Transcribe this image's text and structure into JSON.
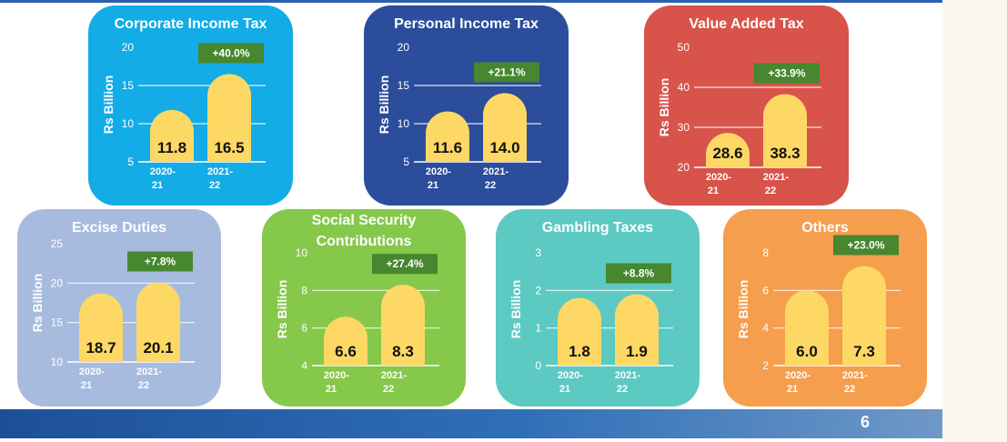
{
  "page_number": "6",
  "chart_data": [
    {
      "type": "bar",
      "title": "Corporate Income Tax",
      "ylabel": "Rs Billion",
      "ylim": [
        5,
        20
      ],
      "yticks": [
        "5",
        "10",
        "15",
        "20"
      ],
      "categories": [
        "2020-21",
        "2021-22"
      ],
      "category_labels": [
        [
          "2020-",
          "21"
        ],
        [
          "2021-",
          "22"
        ]
      ],
      "values": [
        11.8,
        16.5
      ],
      "value_labels": [
        "11.8",
        "16.5"
      ],
      "change_label": "+40.0%",
      "colors": {
        "panel": "#13ace6",
        "bar": "#fdd865",
        "badge": "#46872f"
      },
      "grid": true
    },
    {
      "type": "bar",
      "title": "Personal Income Tax",
      "ylabel": "Rs Billion",
      "ylim": [
        5,
        20
      ],
      "yticks": [
        "5",
        "10",
        "15",
        "20"
      ],
      "categories": [
        "2020-21",
        "2021-22"
      ],
      "category_labels": [
        [
          "2020-",
          "21"
        ],
        [
          "2021-",
          "22"
        ]
      ],
      "values": [
        11.6,
        14.0
      ],
      "value_labels": [
        "11.6",
        "14.0"
      ],
      "change_label": "+21.1%",
      "colors": {
        "panel": "#2b4d9b",
        "bar": "#fdd865",
        "badge": "#46872f"
      },
      "grid": true
    },
    {
      "type": "bar",
      "title": "Value Added Tax",
      "ylabel": "Rs Billion",
      "ylim": [
        20,
        50
      ],
      "yticks": [
        "20",
        "30",
        "40",
        "50"
      ],
      "categories": [
        "2020-21",
        "2021-22"
      ],
      "category_labels": [
        [
          "2020-",
          "21"
        ],
        [
          "2021-",
          "22"
        ]
      ],
      "values": [
        28.6,
        38.3
      ],
      "value_labels": [
        "28.6",
        "38.3"
      ],
      "change_label": "+33.9%",
      "colors": {
        "panel": "#d8534a",
        "bar": "#fdd865",
        "badge": "#46872f"
      },
      "grid": true
    },
    {
      "type": "bar",
      "title": "Excise Duties",
      "ylabel": "Rs Billion",
      "ylim": [
        10,
        25
      ],
      "yticks": [
        "10",
        "15",
        "20",
        "25"
      ],
      "categories": [
        "2020-21",
        "2021-22"
      ],
      "category_labels": [
        [
          "2020-",
          "21"
        ],
        [
          "2021-",
          "22"
        ]
      ],
      "values": [
        18.7,
        20.1
      ],
      "value_labels": [
        "18.7",
        "20.1"
      ],
      "change_label": "+7.8%",
      "colors": {
        "panel": "#a7bbdf",
        "bar": "#fdd865",
        "badge": "#46872f"
      },
      "grid": true
    },
    {
      "type": "bar",
      "title": "Social Security Contributions",
      "title_lines": [
        "Social Security",
        "Contributions"
      ],
      "ylabel": "Rs Billion",
      "ylim": [
        4,
        10
      ],
      "yticks": [
        "4",
        "6",
        "8",
        "10"
      ],
      "categories": [
        "2020-21",
        "2021-22"
      ],
      "category_labels": [
        [
          "2020-",
          "21"
        ],
        [
          "2021-",
          "22"
        ]
      ],
      "values": [
        6.6,
        8.3
      ],
      "value_labels": [
        "6.6",
        "8.3"
      ],
      "change_label": "+27.4%",
      "colors": {
        "panel": "#86c84a",
        "bar": "#fdd865",
        "badge": "#46872f"
      },
      "grid": true
    },
    {
      "type": "bar",
      "title": "Gambling Taxes",
      "ylabel": "Rs Billion",
      "ylim": [
        0,
        3
      ],
      "yticks": [
        "0",
        "1",
        "2",
        "3"
      ],
      "categories": [
        "2020-21",
        "2021-22"
      ],
      "category_labels": [
        [
          "2020-",
          "21"
        ],
        [
          "2021-",
          "22"
        ]
      ],
      "values": [
        1.8,
        1.9
      ],
      "value_labels": [
        "1.8",
        "1.9"
      ],
      "change_label": "+8.8%",
      "colors": {
        "panel": "#5cc9c3",
        "bar": "#fdd865",
        "badge": "#46872f"
      },
      "grid": true
    },
    {
      "type": "bar",
      "title": "Others",
      "ylabel": "Rs Billion",
      "ylim": [
        2,
        8
      ],
      "yticks": [
        "2",
        "4",
        "6",
        "8"
      ],
      "categories": [
        "2020-21",
        "2021-22"
      ],
      "category_labels": [
        [
          "2020-",
          "21"
        ],
        [
          "2021-",
          "22"
        ]
      ],
      "values": [
        6.0,
        7.3
      ],
      "value_labels": [
        "6.0",
        "7.3"
      ],
      "change_label": "+23.0%",
      "colors": {
        "panel": "#f59e4e",
        "bar": "#fdd865",
        "badge": "#46872f"
      },
      "grid": true
    }
  ]
}
